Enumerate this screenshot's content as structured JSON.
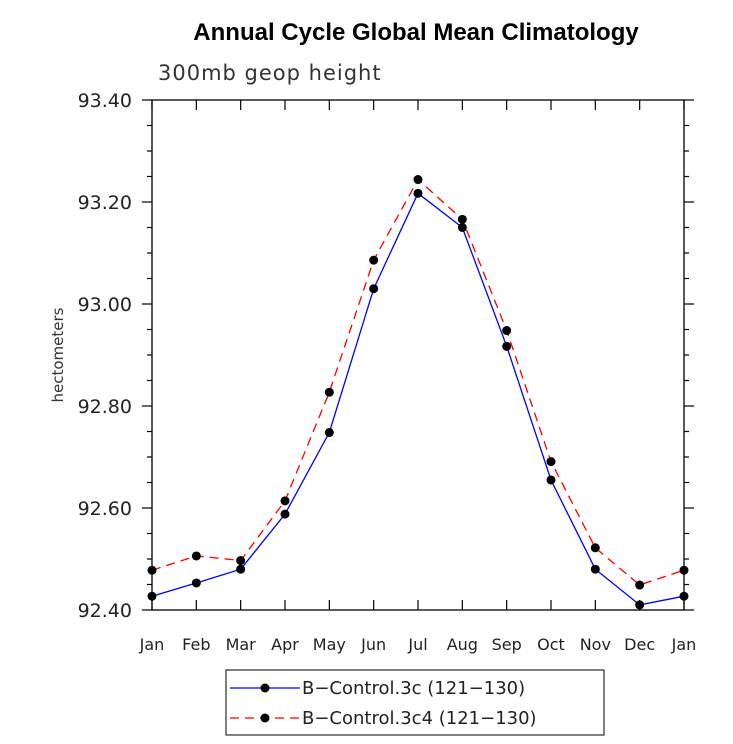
{
  "chart_data": {
    "type": "line",
    "title": "Annual Cycle Global Mean Climatology",
    "subtitle": "300mb geop height",
    "xlabel": "",
    "ylabel": "hectometers",
    "categories": [
      "Jan",
      "Feb",
      "Mar",
      "Apr",
      "May",
      "Jun",
      "Jul",
      "Aug",
      "Sep",
      "Oct",
      "Nov",
      "Dec",
      "Jan"
    ],
    "ylim": [
      92.4,
      93.4
    ],
    "yticks": [
      "92.40",
      "92.60",
      "92.80",
      "93.00",
      "93.20",
      "93.40"
    ],
    "series": [
      {
        "name": "B-Control.3c (121-130)",
        "label": "B−Control.3c (121−130)",
        "color": "#0000ff",
        "dash": "solid",
        "values": [
          92.427,
          92.453,
          92.48,
          92.588,
          92.748,
          93.03,
          93.217,
          93.15,
          92.917,
          92.655,
          92.48,
          92.41,
          92.427
        ]
      },
      {
        "name": "B-Control.3c4 (121-130)",
        "label": "B−Control.3c4 (121−130)",
        "color": "#ff0000",
        "dash": "dashed",
        "values": [
          92.478,
          92.506,
          92.497,
          92.614,
          92.827,
          93.086,
          93.244,
          93.166,
          92.948,
          92.691,
          92.522,
          92.449,
          92.478
        ]
      }
    ]
  }
}
